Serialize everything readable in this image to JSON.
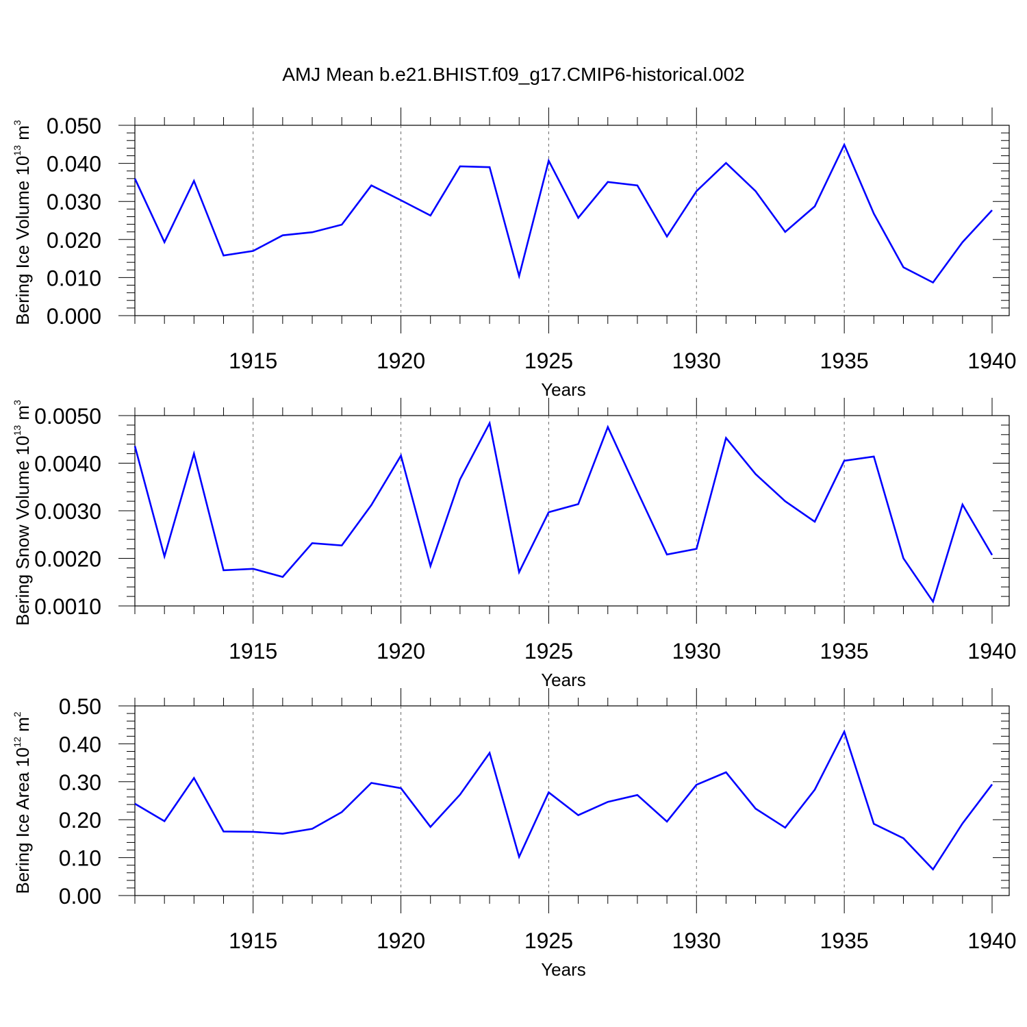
{
  "title": "AMJ Mean b.e21.BHIST.f09_g17.CMIP6-historical.002",
  "chart_data": [
    {
      "type": "line",
      "ylabel": {
        "base": "Bering Ice Volume 10",
        "exp": "13",
        "unit": " m",
        "unit_exp": "3"
      },
      "xlabel": "Years",
      "xlim": [
        1911,
        1940
      ],
      "ylim": [
        0.0,
        0.05
      ],
      "yticks": [
        0.0,
        0.01,
        0.02,
        0.03,
        0.04,
        0.05
      ],
      "ytick_labels": [
        "0.000",
        "0.010",
        "0.020",
        "0.030",
        "0.040",
        "0.050"
      ],
      "xticks": [
        1915,
        1920,
        1925,
        1930,
        1935,
        1940
      ],
      "xtick_labels": [
        "1915",
        "1920",
        "1925",
        "1930",
        "1935",
        "1940"
      ],
      "color": "#0000ff",
      "x": [
        1911,
        1912,
        1913,
        1914,
        1915,
        1916,
        1917,
        1918,
        1919,
        1920,
        1921,
        1922,
        1923,
        1924,
        1925,
        1926,
        1927,
        1928,
        1929,
        1930,
        1931,
        1932,
        1933,
        1934,
        1935,
        1936,
        1937,
        1938,
        1939,
        1940
      ],
      "y": [
        0.036,
        0.0193,
        0.0354,
        0.0158,
        0.017,
        0.0211,
        0.0219,
        0.0239,
        0.0342,
        0.0303,
        0.0263,
        0.0392,
        0.039,
        0.0104,
        0.0407,
        0.0257,
        0.0351,
        0.0342,
        0.0208,
        0.0327,
        0.0401,
        0.0327,
        0.022,
        0.0287,
        0.0449,
        0.0268,
        0.0127,
        0.0087,
        0.0193,
        0.0277
      ]
    },
    {
      "type": "line",
      "ylabel": {
        "base": "Bering Snow Volume 10",
        "exp": "13",
        "unit": " m",
        "unit_exp": "3"
      },
      "xlabel": "Years",
      "xlim": [
        1911,
        1940
      ],
      "ylim": [
        0.001,
        0.005
      ],
      "yticks": [
        0.001,
        0.002,
        0.003,
        0.004,
        0.005
      ],
      "ytick_labels": [
        "0.0010",
        "0.0020",
        "0.0030",
        "0.0040",
        "0.0050"
      ],
      "xticks": [
        1915,
        1920,
        1925,
        1930,
        1935,
        1940
      ],
      "xtick_labels": [
        "1915",
        "1920",
        "1925",
        "1930",
        "1935",
        "1940"
      ],
      "color": "#0000ff",
      "x": [
        1911,
        1912,
        1913,
        1914,
        1915,
        1916,
        1917,
        1918,
        1919,
        1920,
        1921,
        1922,
        1923,
        1924,
        1925,
        1926,
        1927,
        1928,
        1929,
        1930,
        1931,
        1932,
        1933,
        1934,
        1935,
        1936,
        1937,
        1938,
        1939,
        1940
      ],
      "y": [
        0.00436,
        0.00204,
        0.0042,
        0.00175,
        0.00178,
        0.00161,
        0.00232,
        0.00227,
        0.00312,
        0.00416,
        0.00184,
        0.00366,
        0.00484,
        0.00171,
        0.00297,
        0.00314,
        0.00476,
        0.00341,
        0.00208,
        0.0022,
        0.00453,
        0.00377,
        0.0032,
        0.00277,
        0.00405,
        0.00414,
        0.002,
        0.00109,
        0.00313,
        0.00207
      ]
    },
    {
      "type": "line",
      "ylabel": {
        "base": "Bering Ice Area 10",
        "exp": "12",
        "unit": " m",
        "unit_exp": "2"
      },
      "xlabel": "Years",
      "xlim": [
        1911,
        1940
      ],
      "ylim": [
        0.0,
        0.5
      ],
      "yticks": [
        0.0,
        0.1,
        0.2,
        0.3,
        0.4,
        0.5
      ],
      "ytick_labels": [
        "0.00",
        "0.10",
        "0.20",
        "0.30",
        "0.40",
        "0.50"
      ],
      "xticks": [
        1915,
        1920,
        1925,
        1930,
        1935,
        1940
      ],
      "xtick_labels": [
        "1915",
        "1920",
        "1925",
        "1930",
        "1935",
        "1940"
      ],
      "color": "#0000ff",
      "x": [
        1911,
        1912,
        1913,
        1914,
        1915,
        1916,
        1917,
        1918,
        1919,
        1920,
        1921,
        1922,
        1923,
        1924,
        1925,
        1926,
        1927,
        1928,
        1929,
        1930,
        1931,
        1932,
        1933,
        1934,
        1935,
        1936,
        1937,
        1938,
        1939,
        1940
      ],
      "y": [
        0.242,
        0.196,
        0.31,
        0.169,
        0.168,
        0.163,
        0.176,
        0.22,
        0.297,
        0.283,
        0.181,
        0.266,
        0.376,
        0.102,
        0.272,
        0.212,
        0.247,
        0.265,
        0.195,
        0.292,
        0.325,
        0.229,
        0.179,
        0.279,
        0.432,
        0.189,
        0.151,
        0.069,
        0.19,
        0.293
      ]
    }
  ]
}
